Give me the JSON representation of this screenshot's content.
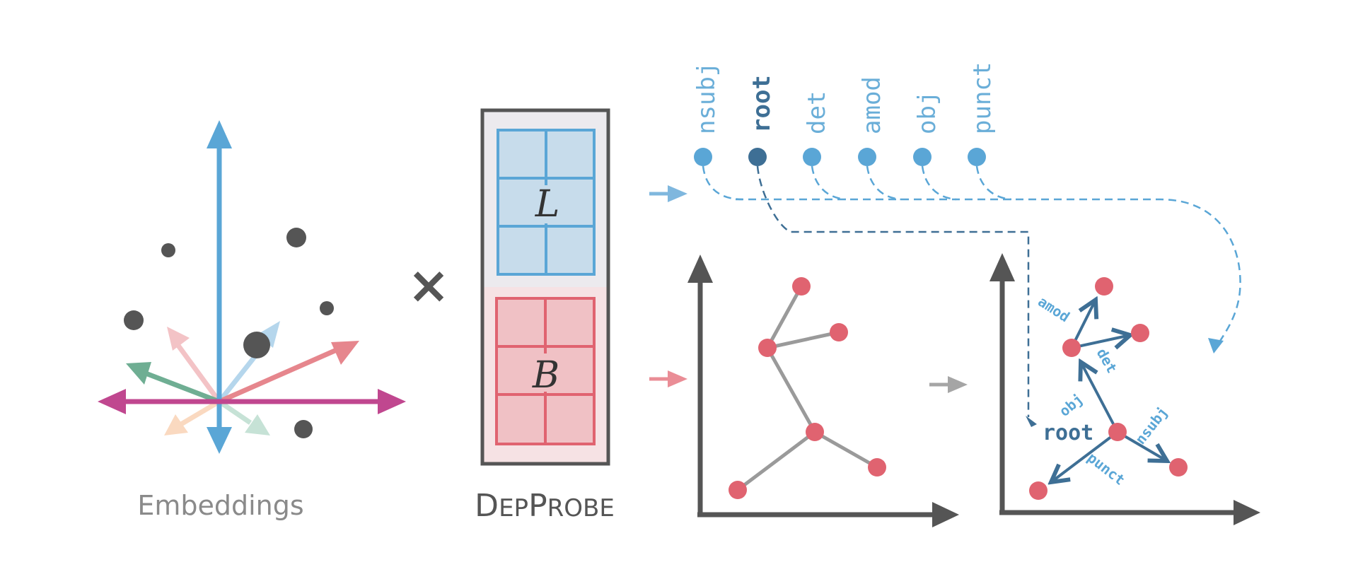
{
  "labels": {
    "embeddings": "Embeddings",
    "probe_title_prefix_big": "D",
    "probe_title_prefix_small": "EP",
    "probe_title_suffix_big": "P",
    "probe_title_suffix_small": "ROBE",
    "times": "×",
    "matrix_L": "L",
    "matrix_B": "B",
    "root_node": "root"
  },
  "relation_labels": [
    "nsubj",
    "root",
    "det",
    "amod",
    "obj",
    "punct"
  ],
  "edge_labels": {
    "amod": "amod",
    "det": "det",
    "obj": "obj",
    "nsubj": "nsubj",
    "punct": "punct"
  },
  "colors": {
    "blue": "#5aa6d6",
    "dark_blue": "#3e6f95",
    "red": "#e06370",
    "magenta": "#c0478f",
    "gray": "#555555",
    "light_gray": "#9a9a9a",
    "green": "#6fae93"
  }
}
